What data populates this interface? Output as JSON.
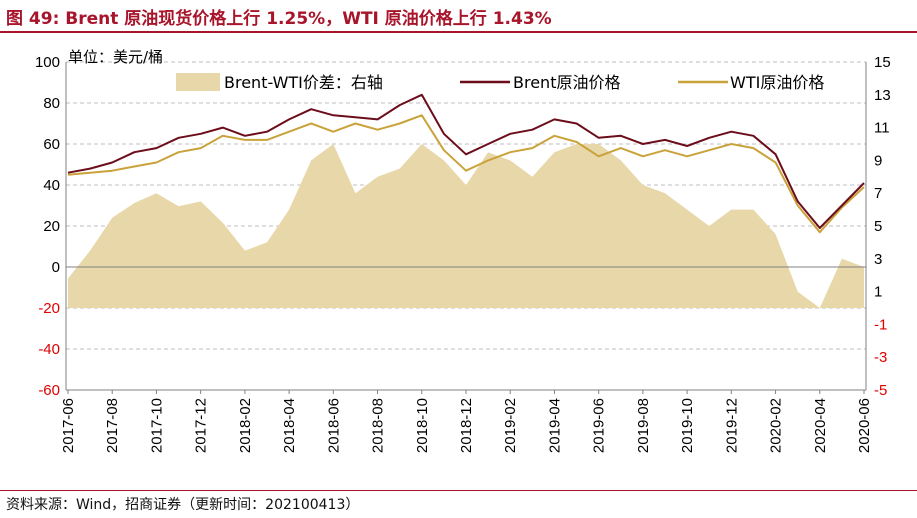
{
  "header": {
    "title": "图 49:  Brent 原油现货价格上行 1.25%，WTI 原油价格上行 1.43%"
  },
  "footer": {
    "source": "资料来源：Wind，招商证券（更新时间：202100413）"
  },
  "colors": {
    "title": "#a8152a",
    "brent": "#6b0d1a",
    "wti": "#c9a23a",
    "spread": "#e8d7a9",
    "negative_tick": "#e00000"
  },
  "chart_data": {
    "type": "line",
    "unit_label": "单位：美元/桶",
    "x": [
      "2017-06",
      "2017-07",
      "2017-08",
      "2017-09",
      "2017-10",
      "2017-11",
      "2017-12",
      "2018-01",
      "2018-02",
      "2018-03",
      "2018-04",
      "2018-05",
      "2018-06",
      "2018-07",
      "2018-08",
      "2018-09",
      "2018-10",
      "2018-11",
      "2018-12",
      "2019-01",
      "2019-02",
      "2019-03",
      "2019-04",
      "2019-05",
      "2019-06",
      "2019-07",
      "2019-08",
      "2019-09",
      "2019-10",
      "2019-11",
      "2019-12",
      "2020-01",
      "2020-02",
      "2020-03",
      "2020-04",
      "2020-05",
      "2020-06"
    ],
    "x_tick_labels": [
      "2017-06",
      "2017-08",
      "2017-10",
      "2017-12",
      "2018-02",
      "2018-04",
      "2018-06",
      "2018-08",
      "2018-10",
      "2018-12",
      "2019-02",
      "2019-04",
      "2019-06",
      "2019-08",
      "2019-10",
      "2019-12",
      "2020-02",
      "2020-04",
      "2020-06"
    ],
    "y_left": {
      "range": [
        -60,
        100
      ],
      "ticks": [
        -60,
        -40,
        -20,
        0,
        20,
        40,
        60,
        80,
        100
      ]
    },
    "y_right": {
      "range": [
        -5,
        15
      ],
      "ticks": [
        -5,
        -3,
        -1,
        1,
        3,
        5,
        7,
        9,
        11,
        13,
        15
      ]
    },
    "series": [
      {
        "name": "Brent-WTI价差：右轴",
        "type": "area",
        "axis": "right",
        "values": [
          1.8,
          3.5,
          5.5,
          6.4,
          7.0,
          6.2,
          6.5,
          5.2,
          3.5,
          4.0,
          6.0,
          9.0,
          10.0,
          7.0,
          8.0,
          8.5,
          10.0,
          9.0,
          7.5,
          9.5,
          9.0,
          8.0,
          9.5,
          10.0,
          10.0,
          9.0,
          7.5,
          7.0,
          6.0,
          5.0,
          6.0,
          6.0,
          4.5,
          1.0,
          0.0,
          3.0,
          2.5
        ]
      },
      {
        "name": "Brent原油价格",
        "type": "line",
        "axis": "left",
        "values": [
          46,
          48,
          51,
          56,
          58,
          63,
          65,
          68,
          64,
          66,
          72,
          77,
          74,
          73,
          72,
          79,
          84,
          65,
          55,
          60,
          65,
          67,
          72,
          70,
          63,
          64,
          60,
          62,
          59,
          63,
          66,
          64,
          55,
          32,
          19,
          30,
          41
        ]
      },
      {
        "name": "WTI原油价格",
        "type": "line",
        "axis": "left",
        "values": [
          45,
          46,
          47,
          49,
          51,
          56,
          58,
          64,
          62,
          62,
          66,
          70,
          66,
          70,
          67,
          70,
          74,
          57,
          47,
          52,
          56,
          58,
          64,
          61,
          54,
          58,
          54,
          57,
          54,
          57,
          60,
          58,
          51,
          30,
          17,
          29,
          39
        ]
      }
    ],
    "grid": true,
    "legend_position": "top"
  }
}
